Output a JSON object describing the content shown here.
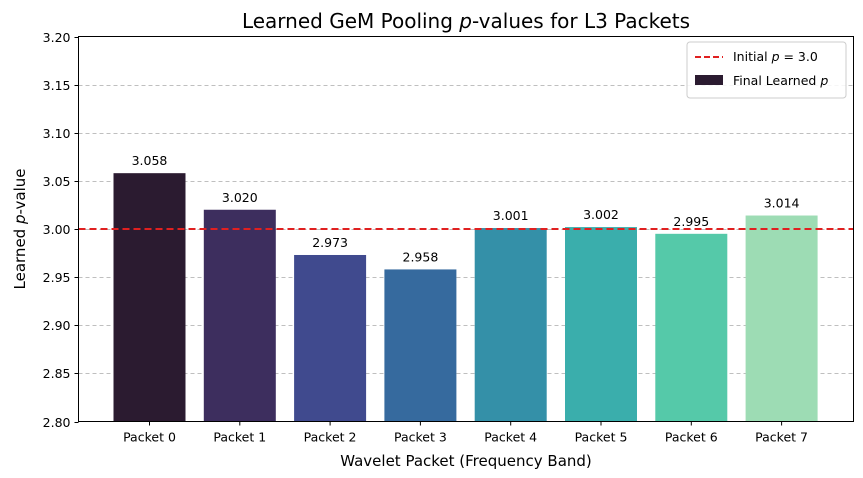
{
  "chart_data": {
    "type": "bar",
    "title_pre": "Learned GeM Pooling ",
    "title_p": "p",
    "title_post": "-values for L3 Packets",
    "xlabel": "Wavelet Packet (Frequency Band)",
    "ylabel_pre": "Learned ",
    "ylabel_p": "p",
    "ylabel_post": "-value",
    "categories": [
      "Packet 0",
      "Packet 1",
      "Packet 2",
      "Packet 3",
      "Packet 4",
      "Packet 5",
      "Packet 6",
      "Packet 7"
    ],
    "values": [
      3.058,
      3.02,
      2.973,
      2.958,
      3.001,
      3.002,
      2.995,
      3.014
    ],
    "value_labels": [
      "3.058",
      "3.020",
      "2.973",
      "2.958",
      "3.001",
      "3.002",
      "2.995",
      "3.014"
    ],
    "colors": [
      "#2b1b30",
      "#3d2e5e",
      "#404a8e",
      "#366a9e",
      "#3490a8",
      "#3aaeac",
      "#55c9a9",
      "#9ddcb4"
    ],
    "ylim": [
      2.8,
      3.2
    ],
    "yticks": [
      2.8,
      2.85,
      2.9,
      2.95,
      3.0,
      3.05,
      3.1,
      3.15,
      3.2
    ],
    "ytick_labels": [
      "2.80",
      "2.85",
      "2.90",
      "2.95",
      "3.00",
      "3.05",
      "3.10",
      "3.15",
      "3.20"
    ],
    "grid": "y-dashed",
    "reference_line": {
      "value": 3.0,
      "color": "#e02020"
    },
    "legend": {
      "placement": "top-right",
      "line_pre": "Initial ",
      "line_p": "p",
      "line_post": " = 3.0",
      "bar_pre": "Final Learned ",
      "bar_p": "p",
      "bar_color": "#2b1b30"
    }
  }
}
